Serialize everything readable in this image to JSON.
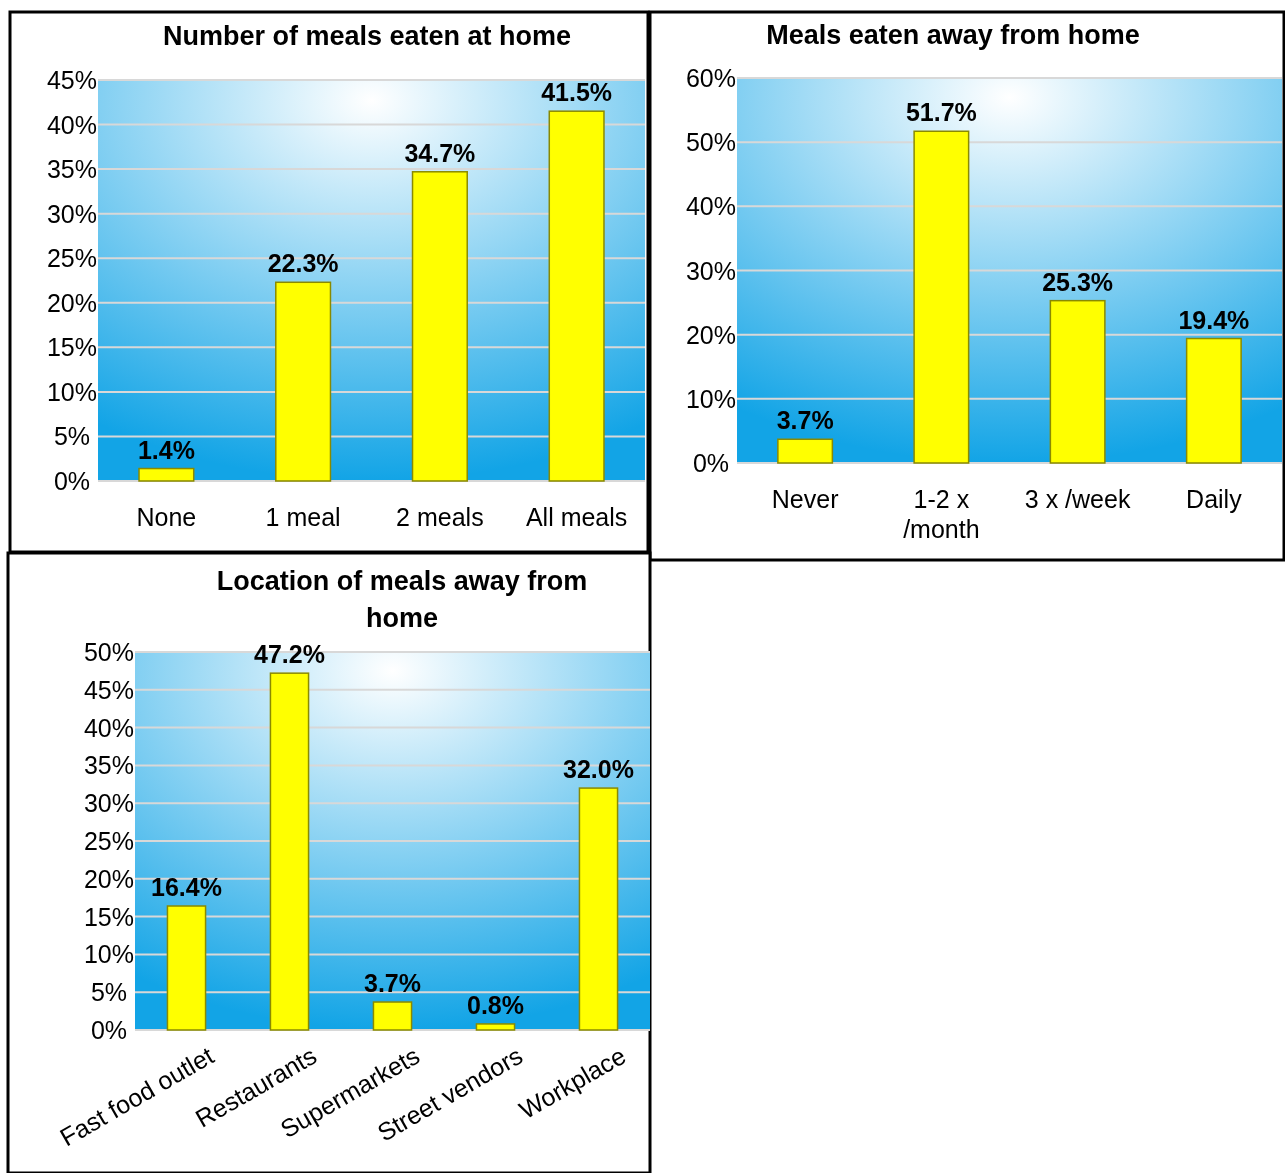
{
  "chart_data": [
    {
      "type": "bar",
      "title": "Number of meals eaten at home",
      "categories": [
        "None",
        "1 meal",
        "2 meals",
        "All meals"
      ],
      "values": [
        1.4,
        22.3,
        34.7,
        41.5
      ],
      "value_labels": [
        "1.4%",
        "22.3%",
        "34.7%",
        "41.5%"
      ],
      "color": "#ffff00",
      "ylim": [
        0,
        45
      ],
      "yticks": [
        {
          "value": 0,
          "label": "0%"
        },
        {
          "value": 5,
          "label": "5%"
        },
        {
          "value": 10,
          "label": "10%"
        },
        {
          "value": 15,
          "label": "15%"
        },
        {
          "value": 20,
          "label": "20%"
        },
        {
          "value": 25,
          "label": "25%"
        },
        {
          "value": 30,
          "label": "30%"
        },
        {
          "value": 35,
          "label": "35%"
        },
        {
          "value": 40,
          "label": "40%"
        },
        {
          "value": 45,
          "label": "45%"
        }
      ],
      "grid": "y"
    },
    {
      "type": "bar",
      "title": "Meals eaten away from home",
      "categories": [
        "Never",
        "1-2 x /month",
        "3 x /week",
        "Daily"
      ],
      "values": [
        3.7,
        51.7,
        25.3,
        19.4
      ],
      "value_labels": [
        "3.7%",
        "51.7%",
        "25.3%",
        "19.4%"
      ],
      "color": "#ffff00",
      "ylim": [
        0,
        60
      ],
      "yticks": [
        {
          "value": 0,
          "label": "0%"
        },
        {
          "value": 10,
          "label": "10%"
        },
        {
          "value": 20,
          "label": "20%"
        },
        {
          "value": 30,
          "label": "30%"
        },
        {
          "value": 40,
          "label": "40%"
        },
        {
          "value": 50,
          "label": "50%"
        },
        {
          "value": 60,
          "label": "60%"
        }
      ],
      "grid": "y"
    },
    {
      "type": "bar",
      "title": "Location of meals away from home",
      "categories": [
        "Fast food outlet",
        "Restaurants",
        "Supermarkets",
        "Street vendors",
        "Workplace"
      ],
      "values": [
        16.4,
        47.2,
        3.7,
        0.8,
        32.0
      ],
      "value_labels": [
        "16.4%",
        "47.2%",
        "3.7%",
        "0.8%",
        "32.0%"
      ],
      "color": "#ffff00",
      "ylim": [
        0,
        50
      ],
      "yticks": [
        {
          "value": 0,
          "label": "0%"
        },
        {
          "value": 5,
          "label": "5%"
        },
        {
          "value": 10,
          "label": "10%"
        },
        {
          "value": 15,
          "label": "15%"
        },
        {
          "value": 20,
          "label": "20%"
        },
        {
          "value": 25,
          "label": "25%"
        },
        {
          "value": 30,
          "label": "30%"
        },
        {
          "value": 35,
          "label": "35%"
        },
        {
          "value": 40,
          "label": "40%"
        },
        {
          "value": 45,
          "label": "45%"
        },
        {
          "value": 50,
          "label": "50%"
        }
      ],
      "grid": "y"
    }
  ]
}
